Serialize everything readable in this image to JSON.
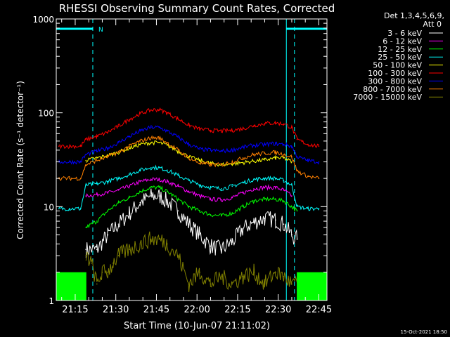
{
  "chart_data": {
    "type": "line",
    "title": "RHESSI Observing Summary Count Rates, Corrected",
    "xlabel": "Start Time (10-Jun-07 21:11:02)",
    "ylabel": "Corrected Count Rate (s⁻¹ detector⁻¹)",
    "yscale": "log",
    "ylim": [
      1,
      1000
    ],
    "xlim": [
      -3,
      97
    ],
    "x_ticks": [
      {
        "value": 4,
        "label": "21:15"
      },
      {
        "value": 19,
        "label": "21:30"
      },
      {
        "value": 34,
        "label": "21:45"
      },
      {
        "value": 49,
        "label": "22:00"
      },
      {
        "value": 64,
        "label": "22:15"
      },
      {
        "value": 79,
        "label": "22:30"
      },
      {
        "value": 94,
        "label": "22:45"
      }
    ],
    "y_ticks": [
      {
        "value": 1,
        "label": "1"
      },
      {
        "value": 10,
        "label": "10"
      },
      {
        "value": 100,
        "label": "100"
      },
      {
        "value": 1000,
        "label": "1000"
      }
    ],
    "legend": {
      "placement": "right",
      "header": [
        "Det 1,3,4,5,6,9,",
        "Att 0"
      ]
    },
    "annotations": {
      "night_marker": "N",
      "intervals": [
        [
          -3,
          10.5
        ],
        [
          82,
          97
        ]
      ],
      "dashed_lines": [
        10.5,
        85
      ],
      "solid_line": 82
    },
    "series": [
      {
        "name": "3 - 6 keV",
        "color": "#ffffff",
        "points": [
          [
            8,
            3.5
          ],
          [
            12,
            3.5
          ],
          [
            16,
            5
          ],
          [
            20,
            6.5
          ],
          [
            24,
            8.5
          ],
          [
            28,
            11
          ],
          [
            32,
            13
          ],
          [
            35,
            13
          ],
          [
            38,
            11.5
          ],
          [
            42,
            9
          ],
          [
            46,
            6.5
          ],
          [
            50,
            5
          ],
          [
            54,
            3.8
          ],
          [
            58,
            3.5
          ],
          [
            62,
            4.2
          ],
          [
            66,
            5.8
          ],
          [
            70,
            6.8
          ],
          [
            74,
            7.5
          ],
          [
            78,
            7.2
          ],
          [
            81,
            6.5
          ],
          [
            84,
            5
          ],
          [
            86,
            4.5
          ]
        ]
      },
      {
        "name": "6 - 12 keV",
        "color": "#ff00ff",
        "points": [
          [
            8,
            13
          ],
          [
            12,
            13.5
          ],
          [
            16,
            14
          ],
          [
            20,
            15
          ],
          [
            24,
            16.5
          ],
          [
            28,
            18.5
          ],
          [
            32,
            19.5
          ],
          [
            35,
            19.5
          ],
          [
            38,
            18.5
          ],
          [
            42,
            16.5
          ],
          [
            46,
            14.5
          ],
          [
            50,
            13
          ],
          [
            54,
            12
          ],
          [
            58,
            11.8
          ],
          [
            62,
            12.5
          ],
          [
            66,
            14
          ],
          [
            70,
            15.5
          ],
          [
            74,
            16
          ],
          [
            78,
            16
          ],
          [
            81,
            15
          ],
          [
            84,
            13
          ]
        ]
      },
      {
        "name": "12 - 25 keV",
        "color": "#00ff00",
        "points": [
          [
            8,
            6
          ],
          [
            12,
            7
          ],
          [
            16,
            9
          ],
          [
            20,
            11
          ],
          [
            24,
            12.5
          ],
          [
            28,
            14.5
          ],
          [
            32,
            16
          ],
          [
            35,
            16
          ],
          [
            38,
            14.5
          ],
          [
            42,
            12
          ],
          [
            46,
            10
          ],
          [
            50,
            9
          ],
          [
            54,
            8.2
          ],
          [
            58,
            8
          ],
          [
            62,
            8.5
          ],
          [
            66,
            10
          ],
          [
            70,
            11.5
          ],
          [
            74,
            12
          ],
          [
            78,
            12
          ],
          [
            81,
            11.5
          ],
          [
            84,
            10
          ],
          [
            86,
            9
          ]
        ]
      },
      {
        "name": "25 - 50 keV",
        "color": "#00ffff",
        "points": [
          [
            -2,
            9.5
          ],
          [
            2,
            9.5
          ],
          [
            6,
            9.5
          ],
          [
            8,
            17
          ],
          [
            12,
            17.5
          ],
          [
            16,
            18.5
          ],
          [
            20,
            20
          ],
          [
            24,
            22
          ],
          [
            28,
            24.5
          ],
          [
            32,
            26
          ],
          [
            35,
            26
          ],
          [
            38,
            24.5
          ],
          [
            42,
            21.5
          ],
          [
            46,
            19
          ],
          [
            50,
            17
          ],
          [
            54,
            16
          ],
          [
            58,
            15.5
          ],
          [
            62,
            16.5
          ],
          [
            66,
            18
          ],
          [
            70,
            19.5
          ],
          [
            74,
            20
          ],
          [
            78,
            20
          ],
          [
            81,
            19
          ],
          [
            84,
            17
          ],
          [
            86,
            10
          ],
          [
            90,
            9.5
          ],
          [
            94,
            9.5
          ]
        ]
      },
      {
        "name": "50 - 100 keV",
        "color": "#ffff00",
        "points": [
          [
            8,
            31
          ],
          [
            12,
            33
          ],
          [
            16,
            35
          ],
          [
            20,
            38
          ],
          [
            24,
            42
          ],
          [
            28,
            46
          ],
          [
            32,
            48
          ],
          [
            35,
            48
          ],
          [
            38,
            45
          ],
          [
            42,
            39
          ],
          [
            46,
            34
          ],
          [
            50,
            31
          ],
          [
            54,
            29
          ],
          [
            58,
            28
          ],
          [
            62,
            28.5
          ],
          [
            66,
            29.5
          ],
          [
            70,
            30.5
          ],
          [
            74,
            31.5
          ],
          [
            78,
            33
          ],
          [
            81,
            33
          ],
          [
            84,
            30
          ]
        ]
      },
      {
        "name": "100 - 300 keV",
        "color": "#ff0000",
        "points": [
          [
            -2,
            44
          ],
          [
            2,
            44
          ],
          [
            6,
            44
          ],
          [
            8,
            52
          ],
          [
            12,
            56
          ],
          [
            16,
            62
          ],
          [
            20,
            72
          ],
          [
            24,
            85
          ],
          [
            28,
            98
          ],
          [
            32,
            107
          ],
          [
            35,
            108
          ],
          [
            38,
            100
          ],
          [
            42,
            86
          ],
          [
            46,
            74
          ],
          [
            50,
            67
          ],
          [
            54,
            65
          ],
          [
            58,
            64
          ],
          [
            62,
            65
          ],
          [
            66,
            68
          ],
          [
            70,
            73
          ],
          [
            74,
            77
          ],
          [
            78,
            78
          ],
          [
            81,
            76
          ],
          [
            84,
            70
          ],
          [
            86,
            52
          ],
          [
            90,
            46
          ],
          [
            94,
            44
          ]
        ]
      },
      {
        "name": "300 - 800 keV",
        "color": "#0000ff",
        "points": [
          [
            -2,
            30
          ],
          [
            2,
            30
          ],
          [
            6,
            30
          ],
          [
            8,
            36
          ],
          [
            12,
            39
          ],
          [
            16,
            42
          ],
          [
            20,
            48
          ],
          [
            24,
            56
          ],
          [
            28,
            64
          ],
          [
            32,
            70
          ],
          [
            35,
            70
          ],
          [
            38,
            64
          ],
          [
            42,
            55
          ],
          [
            46,
            46
          ],
          [
            50,
            41
          ],
          [
            54,
            40
          ],
          [
            58,
            39
          ],
          [
            62,
            40
          ],
          [
            66,
            43
          ],
          [
            70,
            45
          ],
          [
            74,
            46
          ],
          [
            78,
            47
          ],
          [
            81,
            46
          ],
          [
            84,
            44
          ],
          [
            86,
            34
          ],
          [
            90,
            31
          ],
          [
            94,
            30
          ]
        ]
      },
      {
        "name": "800 - 7000 keV",
        "color": "#ff8000",
        "points": [
          [
            -2,
            20
          ],
          [
            2,
            20
          ],
          [
            6,
            20
          ],
          [
            8,
            28
          ],
          [
            12,
            31
          ],
          [
            16,
            34
          ],
          [
            20,
            38
          ],
          [
            24,
            44
          ],
          [
            28,
            50
          ],
          [
            32,
            54
          ],
          [
            35,
            54
          ],
          [
            38,
            48
          ],
          [
            42,
            40
          ],
          [
            46,
            33
          ],
          [
            50,
            29
          ],
          [
            54,
            28
          ],
          [
            58,
            28
          ],
          [
            62,
            30
          ],
          [
            66,
            33
          ],
          [
            70,
            36
          ],
          [
            74,
            37
          ],
          [
            78,
            38
          ],
          [
            81,
            36
          ],
          [
            84,
            34
          ],
          [
            86,
            24
          ],
          [
            90,
            21
          ],
          [
            94,
            20
          ]
        ]
      },
      {
        "name": "7000 - 15000 keV",
        "color": "#808000",
        "points": [
          [
            8,
            3
          ],
          [
            10,
            2.5
          ],
          [
            12,
            1.5
          ],
          [
            14,
            2
          ],
          [
            16,
            2
          ],
          [
            18,
            2.5
          ],
          [
            20,
            3
          ],
          [
            24,
            3.5
          ],
          [
            28,
            4
          ],
          [
            32,
            4.5
          ],
          [
            35,
            4.5
          ],
          [
            38,
            4
          ],
          [
            42,
            3
          ],
          [
            46,
            1.5
          ],
          [
            50,
            2
          ],
          [
            54,
            1.5
          ],
          [
            58,
            1.8
          ],
          [
            62,
            1.5
          ],
          [
            66,
            1.8
          ],
          [
            70,
            2
          ],
          [
            74,
            1.5
          ],
          [
            78,
            2
          ],
          [
            81,
            1.8
          ],
          [
            84,
            1.5
          ],
          [
            88,
            1.5
          ]
        ]
      }
    ]
  },
  "footer": {
    "timestamp": "15-Oct-2021 18:50"
  }
}
